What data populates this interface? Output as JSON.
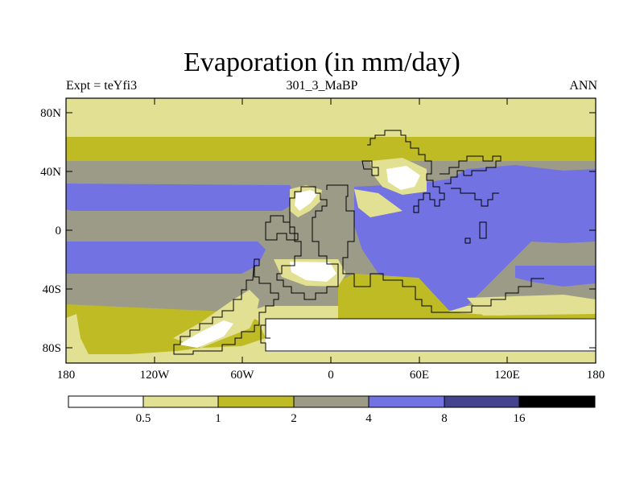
{
  "title": "Evaporation (in mm/day)",
  "subtitle_left": "Expt = teYfi3",
  "subtitle_center": "301_3_MaBP",
  "subtitle_right": "ANN",
  "y_ticks": [
    "80N",
    "40N",
    "0",
    "40S",
    "80S"
  ],
  "x_ticks": [
    "180",
    "120W",
    "60W",
    "0",
    "60E",
    "120E",
    "180"
  ],
  "colorbar": {
    "labels": [
      "0.5",
      "1",
      "2",
      "4",
      "8",
      "16"
    ],
    "colors": [
      "#ffffff",
      "#e2e092",
      "#bfbb25",
      "#9b9b88",
      "#7272e2",
      "#44448e",
      "#000000"
    ]
  },
  "palette": {
    "lt05": "#ffffff",
    "b05_1": "#e2e092",
    "b1_2": "#bfbb25",
    "b2_4": "#9b9b88",
    "b4_8": "#7272e2",
    "b8_16": "#44448e",
    "gt16": "#000000"
  }
}
